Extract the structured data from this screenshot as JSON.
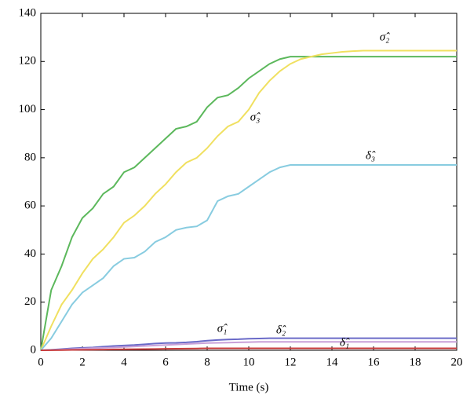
{
  "chart_data": {
    "type": "line",
    "x_label": "Time (s)",
    "x": [
      0,
      0.5,
      1,
      1.5,
      2,
      2.5,
      3,
      3.5,
      4,
      4.5,
      5,
      5.5,
      6,
      6.5,
      7,
      7.5,
      8,
      8.5,
      9,
      9.5,
      10,
      10.5,
      11,
      11.5,
      12,
      12.5,
      13,
      13.5,
      14,
      14.5,
      15,
      15.5,
      16,
      16.5,
      17,
      17.5,
      18,
      18.5,
      19,
      19.5,
      20
    ],
    "series": [
      {
        "name": "σ̂₂",
        "color": "#5cb85c",
        "values": [
          0,
          25,
          35,
          47,
          55,
          59,
          65,
          68,
          74,
          76,
          80,
          84,
          88,
          92,
          93,
          95,
          101,
          105,
          106,
          109,
          113,
          116,
          119,
          121,
          122,
          122,
          122,
          122,
          122,
          122,
          122,
          122,
          122,
          122,
          122,
          122,
          122,
          122,
          122,
          122,
          122
        ]
      },
      {
        "name": "σ̂₃",
        "color": "#f0e060",
        "values": [
          0,
          10,
          19,
          25,
          32,
          38,
          42,
          47,
          53,
          56,
          60,
          65,
          69,
          74,
          78,
          80,
          84,
          89,
          93,
          95,
          100,
          107,
          112,
          116,
          119,
          121,
          122,
          123,
          123.5,
          124,
          124.3,
          124.5,
          124.5,
          124.5,
          124.5,
          124.5,
          124.5,
          124.5,
          124.5,
          124.5,
          124.5
        ]
      },
      {
        "name": "δ̂₃",
        "color": "#88cce0",
        "values": [
          0,
          5,
          12,
          19,
          24,
          27,
          30,
          35,
          38,
          38.5,
          41,
          45,
          47,
          50,
          51,
          51.5,
          54,
          62,
          64,
          65,
          68,
          71,
          74,
          76,
          77,
          77,
          77,
          77,
          77,
          77,
          77,
          77,
          77,
          77,
          77,
          77,
          77,
          77,
          77,
          77,
          77
        ]
      },
      {
        "name": "σ̂₁",
        "color": "#6a6ac8",
        "values": [
          0,
          0.2,
          0.5,
          0.8,
          1,
          1.2,
          1.5,
          1.8,
          2,
          2.2,
          2.5,
          2.8,
          3,
          3.1,
          3.3,
          3.6,
          4,
          4.3,
          4.5,
          4.6,
          4.8,
          4.9,
          5,
          5,
          5,
          5,
          5,
          5,
          5,
          5,
          5,
          5,
          5,
          5,
          5,
          5,
          5,
          5,
          5,
          5,
          5
        ]
      },
      {
        "name": "δ̂₂",
        "color": "#c8a0d8",
        "values": [
          0,
          0.1,
          0.3,
          0.5,
          0.7,
          0.9,
          1,
          1.2,
          1.4,
          1.6,
          1.8,
          2,
          2.2,
          2.4,
          2.6,
          2.8,
          3,
          3.1,
          3.2,
          3.3,
          3.4,
          3.5,
          3.5,
          3.5,
          3.5,
          3.5,
          3.5,
          3.5,
          3.5,
          3.5,
          3.5,
          3.5,
          3.5,
          3.5,
          3.5,
          3.5,
          3.5,
          3.5,
          3.5,
          3.5,
          3.5
        ]
      },
      {
        "name": "δ̂₁",
        "color": "#c83c3c",
        "values": [
          0,
          0.05,
          0.1,
          0.15,
          0.2,
          0.25,
          0.3,
          0.35,
          0.4,
          0.45,
          0.5,
          0.55,
          0.6,
          0.65,
          0.7,
          0.75,
          0.8,
          0.8,
          0.8,
          0.8,
          0.8,
          0.8,
          0.8,
          0.8,
          0.8,
          0.8,
          0.8,
          0.8,
          0.8,
          0.8,
          0.8,
          0.8,
          0.8,
          0.8,
          0.8,
          0.8,
          0.8,
          0.8,
          0.8,
          0.8,
          0.8
        ]
      }
    ],
    "xlim": [
      0,
      20
    ],
    "xticks": [
      0,
      2,
      4,
      6,
      8,
      10,
      12,
      14,
      16,
      18,
      20
    ],
    "ylim": [
      0,
      140
    ],
    "yticks": [
      0,
      20,
      40,
      60,
      80,
      100,
      120,
      140
    ]
  }
}
